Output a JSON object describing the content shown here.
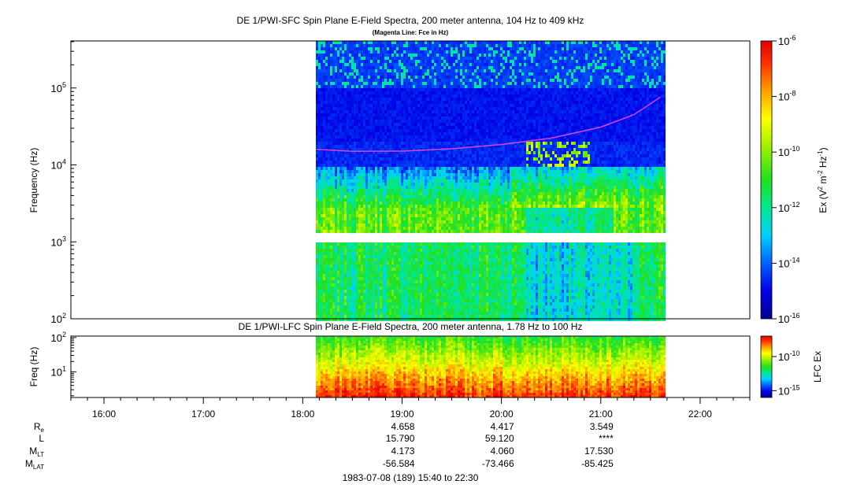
{
  "chart_data": [
    {
      "type": "heatmap",
      "title": "DE 1/PWI-SFC  Spin Plane E-Field Spectra, 200 meter antenna, 104 Hz to 409 kHz",
      "subtitle": "(Magenta Line: Fce in Hz)",
      "ylabel": "Frequency (Hz)",
      "yscale": "log",
      "ylim": [
        100,
        409000
      ],
      "yticks": [
        {
          "base": "10",
          "exp": "2"
        },
        {
          "base": "10",
          "exp": "3"
        },
        {
          "base": "10",
          "exp": "4"
        },
        {
          "base": "10",
          "exp": "5"
        }
      ],
      "data_time_range": [
        "18:08",
        "21:38"
      ],
      "gap_band_hz": [
        1000,
        1250
      ],
      "fce_line": {
        "color": "#e040e0",
        "points": [
          {
            "t": "18:08",
            "f": 16000
          },
          {
            "t": "18:30",
            "f": 15000
          },
          {
            "t": "19:00",
            "f": 15100
          },
          {
            "t": "19:30",
            "f": 16200
          },
          {
            "t": "20:00",
            "f": 18400
          },
          {
            "t": "20:30",
            "f": 22300
          },
          {
            "t": "21:00",
            "f": 31000
          },
          {
            "t": "21:20",
            "f": 45000
          },
          {
            "t": "21:36",
            "f": 76000
          }
        ]
      },
      "colorbar": {
        "label_parts": [
          "Ex (V",
          "2",
          " m",
          "-2",
          " Hz",
          "-1",
          ")"
        ],
        "scale": "log",
        "range": [
          1e-16,
          1e-06
        ],
        "ticks": [
          {
            "base": "10",
            "exp": "-6"
          },
          {
            "base": "10",
            "exp": "-8"
          },
          {
            "base": "10",
            "exp": "-10"
          },
          {
            "base": "10",
            "exp": "-12"
          },
          {
            "base": "10",
            "exp": "-14"
          },
          {
            "base": "10",
            "exp": "-16"
          }
        ]
      }
    },
    {
      "type": "heatmap",
      "title": "DE 1/PWI-LFC  Spin Plane E-Field Spectra, 200 meter antenna, 1.78 Hz to 100 Hz",
      "ylabel": "Freq (Hz)",
      "yscale": "log",
      "ylim": [
        1.78,
        110
      ],
      "yticks": [
        {
          "base": "10",
          "exp": "1"
        },
        {
          "base": "10",
          "exp": "2"
        }
      ],
      "data_time_range": [
        "18:08",
        "21:38"
      ],
      "colorbar": {
        "label": "LFC Ex",
        "scale": "log",
        "range": [
          1e-16,
          1e-07
        ],
        "ticks": [
          {
            "base": "10",
            "exp": "-10"
          },
          {
            "base": "10",
            "exp": "-15"
          }
        ]
      }
    }
  ],
  "time_axis": {
    "range": [
      "15:40",
      "22:30"
    ],
    "ticks": [
      "16:00",
      "17:00",
      "18:00",
      "19:00",
      "20:00",
      "21:00",
      "22:00"
    ]
  },
  "ephemeris": {
    "rows": [
      {
        "label": "R",
        "sub": "e",
        "values": [
          "4.658",
          "4.417",
          "3.549"
        ]
      },
      {
        "label": "L",
        "sub": "",
        "values": [
          "15.790",
          "59.120",
          "****"
        ]
      },
      {
        "label": "M",
        "sub": "LT",
        "values": [
          "4.173",
          "4.060",
          "17.530"
        ]
      },
      {
        "label": "M",
        "sub": "LAT",
        "values": [
          "-56.584",
          "-73.466",
          "-85.425"
        ]
      }
    ],
    "times": [
      "19:00",
      "20:00",
      "21:00"
    ]
  },
  "footer": "1983-07-08 (189) 15:40 to 22:30"
}
